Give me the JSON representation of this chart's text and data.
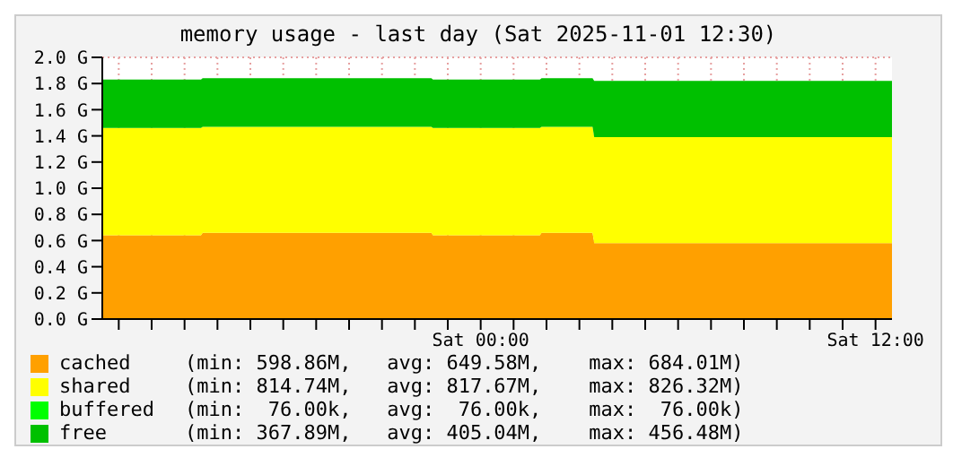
{
  "chart_data": {
    "type": "area",
    "title": "memory usage - last day (Sat 2025-11-01 12:30)",
    "stacked": true,
    "grid": true,
    "legend": "bottom",
    "x": [
      "2025-10-31T12:30",
      "2025-10-31T15:30",
      "2025-10-31T15:33",
      "2025-10-31T22:30",
      "2025-10-31T22:33",
      "2025-11-01T01:48",
      "2025-11-01T01:51",
      "2025-11-01T03:24",
      "2025-11-01T03:27",
      "2025-11-01T12:30"
    ],
    "xlim": [
      "2025-10-31T12:30",
      "2025-11-01T12:30"
    ],
    "xticks": [
      {
        "value": "2025-10-31T13:00",
        "label": null
      },
      {
        "value": "2025-10-31T14:00",
        "label": null
      },
      {
        "value": "2025-10-31T15:00",
        "label": null
      },
      {
        "value": "2025-10-31T16:00",
        "label": null
      },
      {
        "value": "2025-10-31T17:00",
        "label": null
      },
      {
        "value": "2025-10-31T18:00",
        "label": null
      },
      {
        "value": "2025-10-31T19:00",
        "label": null
      },
      {
        "value": "2025-10-31T20:00",
        "label": null
      },
      {
        "value": "2025-10-31T21:00",
        "label": null
      },
      {
        "value": "2025-10-31T22:00",
        "label": null
      },
      {
        "value": "2025-10-31T23:00",
        "label": null
      },
      {
        "value": "2025-11-01T00:00",
        "label": "Sat 00:00"
      },
      {
        "value": "2025-11-01T01:00",
        "label": null
      },
      {
        "value": "2025-11-01T02:00",
        "label": null
      },
      {
        "value": "2025-11-01T03:00",
        "label": null
      },
      {
        "value": "2025-11-01T04:00",
        "label": null
      },
      {
        "value": "2025-11-01T05:00",
        "label": null
      },
      {
        "value": "2025-11-01T06:00",
        "label": null
      },
      {
        "value": "2025-11-01T07:00",
        "label": null
      },
      {
        "value": "2025-11-01T08:00",
        "label": null
      },
      {
        "value": "2025-11-01T09:00",
        "label": null
      },
      {
        "value": "2025-11-01T10:00",
        "label": null
      },
      {
        "value": "2025-11-01T11:00",
        "label": null
      },
      {
        "value": "2025-11-01T12:00",
        "label": "Sat 12:00"
      }
    ],
    "ylim": [
      0,
      2
    ],
    "yticks": [
      {
        "value": 0,
        "label": "0.0 G"
      },
      {
        "value": 0.2,
        "label": "0.2 G"
      },
      {
        "value": 0.4,
        "label": "0.4 G"
      },
      {
        "value": 0.6,
        "label": "0.6 G"
      },
      {
        "value": 0.8,
        "label": "0.8 G"
      },
      {
        "value": 1,
        "label": "1.0 G"
      },
      {
        "value": 1.2,
        "label": "1.2 G"
      },
      {
        "value": 1.4,
        "label": "1.4 G"
      },
      {
        "value": 1.6,
        "label": "1.6 G"
      },
      {
        "value": 1.8,
        "label": "1.8 G"
      },
      {
        "value": 2,
        "label": "2.0 G"
      }
    ],
    "series": [
      {
        "name": "cached",
        "color": "#ffa000",
        "values": [
          0.64,
          0.64,
          0.66,
          0.66,
          0.64,
          0.64,
          0.66,
          0.66,
          0.58,
          0.58
        ]
      },
      {
        "name": "shared",
        "color": "#ffff00",
        "values": [
          0.82,
          0.82,
          0.81,
          0.81,
          0.82,
          0.82,
          0.81,
          0.81,
          0.81,
          0.81
        ]
      },
      {
        "name": "buffered",
        "color": "#00ff00",
        "values": [
          null,
          null,
          null,
          null,
          null,
          null,
          null,
          null,
          null,
          null
        ]
      },
      {
        "name": "free",
        "color": "#00c000",
        "values": [
          0.37,
          0.37,
          0.37,
          0.37,
          0.37,
          0.37,
          0.37,
          0.37,
          0.43,
          0.43
        ]
      }
    ],
    "annotations": [
      "(min: 598.86M,   avg: 649.58M,    max: 684.01M)",
      "(min: 814.74M,   avg: 817.67M,    max: 826.32M)",
      "(min:  76.00k,   avg:  76.00k,    max:  76.00k)",
      "(min: 367.89M,   avg: 405.04M,    max: 456.48M)"
    ]
  }
}
